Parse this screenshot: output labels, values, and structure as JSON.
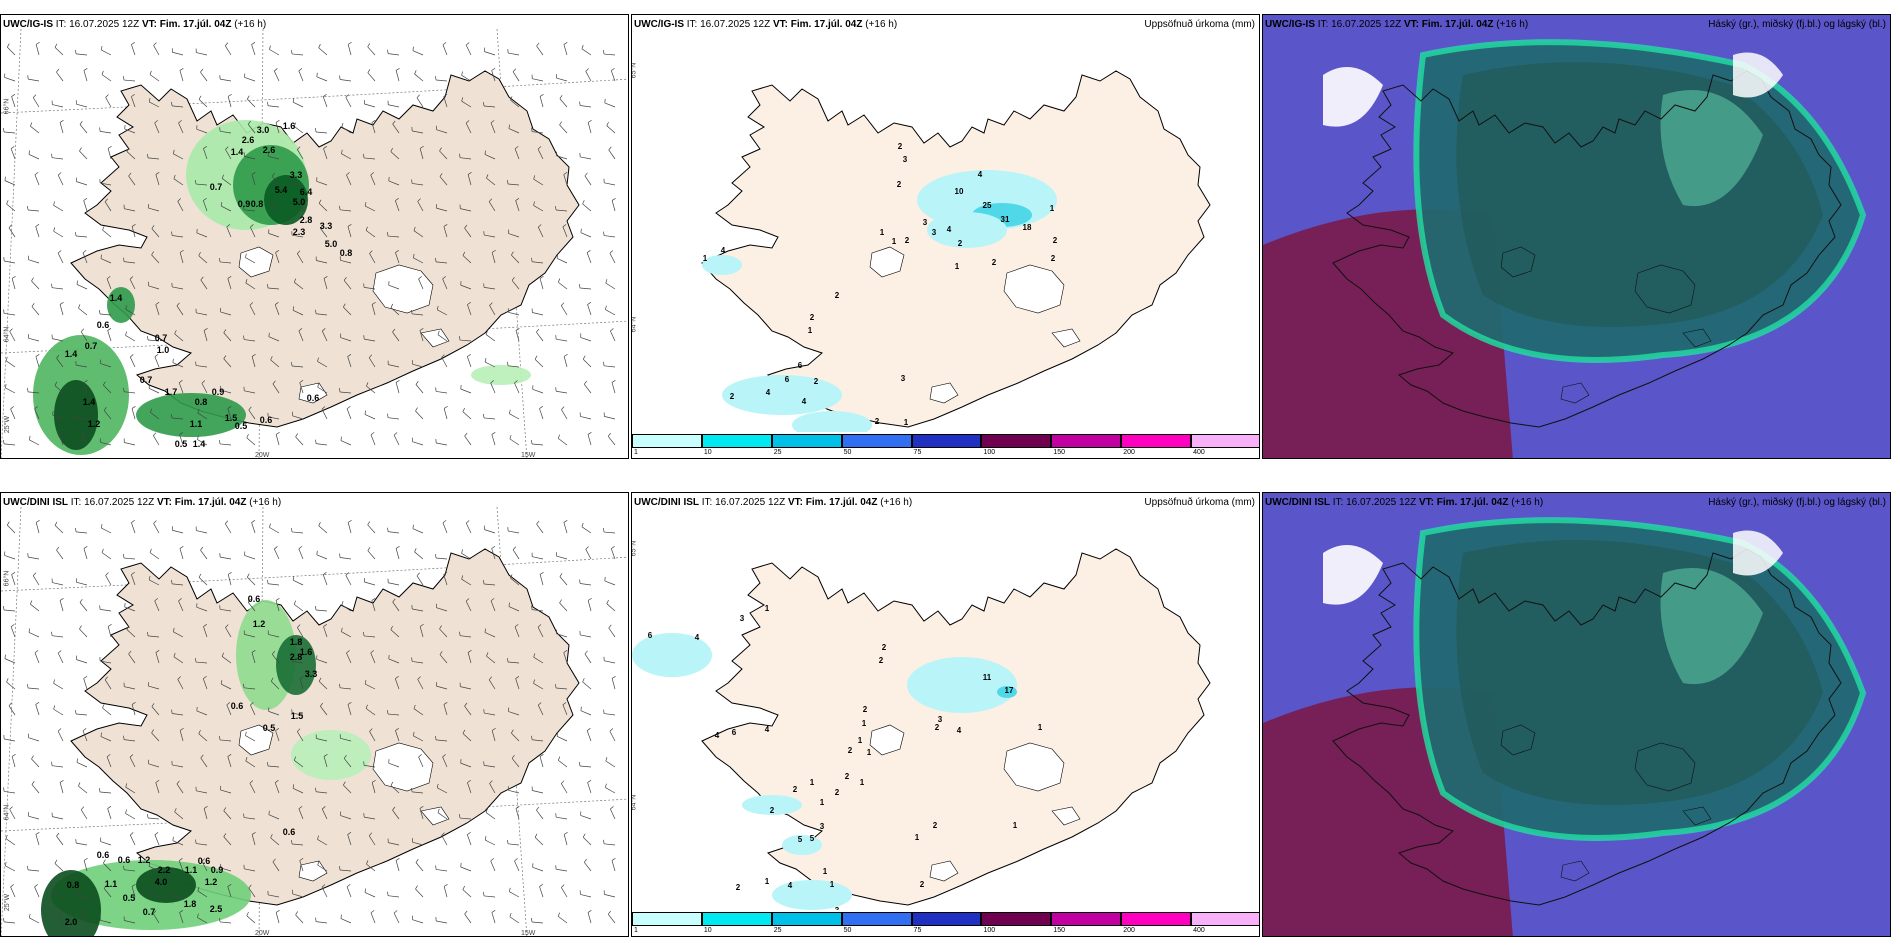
{
  "panels": [
    {
      "model": "UWC/IG-IS",
      "it": "IT: 16.07.2025 12Z",
      "vt": "VT: Fim. 17.júl. 04Z",
      "lead": "(+16 h)",
      "right": ""
    },
    {
      "model": "UWC/IG-IS",
      "it": "IT: 16.07.2025 12Z",
      "vt": "VT: Fim. 17.júl. 04Z",
      "lead": "(+16 h)",
      "right": "Uppsöfnuð úrkoma (mm)"
    },
    {
      "model": "UWC/IG-IS",
      "it": "IT: 16.07.2025 12Z",
      "vt": "VT: Fim. 17.júl. 04Z",
      "lead": "(+16 h)",
      "right": "Háský (gr.), miðský (fj.bl.) og lágský (bl.)"
    },
    {
      "model": "UWC/DINI ISL",
      "it": "IT: 16.07.2025 12Z",
      "vt": "VT: Fim. 17.júl. 04Z",
      "lead": "(+16 h)",
      "right": ""
    },
    {
      "model": "UWC/DINI ISL",
      "it": "IT: 16.07.2025 12Z",
      "vt": "VT: Fim. 17.júl. 04Z",
      "lead": "(+16 h)",
      "right": "Uppsöfnuð úrkoma (mm)"
    },
    {
      "model": "UWC/DINI ISL",
      "it": "IT: 16.07.2025 12Z",
      "vt": "VT: Fim. 17.júl. 04Z",
      "lead": "(+16 h)",
      "right": "Háský (gr.), miðský (fj.bl.) og lágský (bl.)"
    }
  ],
  "axes": {
    "lat66": "66°N",
    "lat64": "64°N",
    "lon25": "25°W",
    "lon20": "20W",
    "lon15": "15W"
  },
  "colorbar": {
    "ticks": [
      "1",
      "10",
      "25",
      "50",
      "75",
      "100",
      "150",
      "200",
      "400"
    ],
    "colors": [
      "#c8ffff",
      "#00e8f0",
      "#00c0e8",
      "#3070f0",
      "#2030c0",
      "#700050",
      "#c000a0",
      "#ff00c0",
      "#f8b0f8"
    ]
  },
  "labels": {
    "igis_wind": [
      [
        "3.0",
        262,
        118
      ],
      [
        "1.6",
        288,
        114
      ],
      [
        "2.6",
        247,
        128
      ],
      [
        "1.4",
        236,
        140
      ],
      [
        "2.6",
        268,
        138
      ],
      [
        "3.3",
        295,
        163
      ],
      [
        "5.4",
        280,
        178
      ],
      [
        "6.4",
        305,
        180
      ],
      [
        "5.0",
        298,
        190
      ],
      [
        "0.7",
        215,
        175
      ],
      [
        "0.9",
        243,
        192
      ],
      [
        "0.8",
        256,
        192
      ],
      [
        "2.8",
        305,
        208
      ],
      [
        "3.3",
        325,
        214
      ],
      [
        "2.3",
        298,
        220
      ],
      [
        "5.0",
        330,
        232
      ],
      [
        "0.8",
        345,
        241
      ],
      [
        "1.4",
        115,
        286
      ],
      [
        "0.6",
        102,
        313
      ],
      [
        "0.7",
        90,
        334
      ],
      [
        "0.7",
        160,
        326
      ],
      [
        "1.0",
        162,
        338
      ],
      [
        "1.4",
        70,
        342
      ],
      [
        "0.7",
        145,
        368
      ],
      [
        "1.7",
        170,
        380
      ],
      [
        "0.9",
        217,
        380
      ],
      [
        "0.8",
        200,
        390
      ],
      [
        "0.6",
        312,
        386
      ],
      [
        "1.4",
        88,
        390
      ],
      [
        "1.5",
        230,
        406
      ],
      [
        "0.6",
        265,
        408
      ],
      [
        "1.2",
        93,
        412
      ],
      [
        "1.1",
        195,
        412
      ],
      [
        "0.5",
        240,
        414
      ],
      [
        "0.5",
        180,
        432
      ],
      [
        "1.4",
        198,
        432
      ]
    ],
    "igis_precip": [
      [
        "2",
        268,
        134
      ],
      [
        "3",
        273,
        147
      ],
      [
        "2",
        267,
        172
      ],
      [
        "4",
        348,
        162
      ],
      [
        "10",
        327,
        179
      ],
      [
        "25",
        355,
        193
      ],
      [
        "31",
        373,
        207
      ],
      [
        "18",
        395,
        215
      ],
      [
        "1",
        420,
        196
      ],
      [
        "3",
        293,
        210
      ],
      [
        "3",
        302,
        220
      ],
      [
        "4",
        317,
        217
      ],
      [
        "2",
        328,
        231
      ],
      [
        "1",
        250,
        220
      ],
      [
        "1",
        262,
        229
      ],
      [
        "2",
        275,
        228
      ],
      [
        "2",
        362,
        250
      ],
      [
        "2",
        423,
        228
      ],
      [
        "2",
        421,
        246
      ],
      [
        "4",
        91,
        238
      ],
      [
        "1",
        73,
        246
      ],
      [
        "1",
        325,
        254
      ],
      [
        "2",
        205,
        283
      ],
      [
        "2",
        180,
        305
      ],
      [
        "1",
        178,
        318
      ],
      [
        "6",
        168,
        353
      ],
      [
        "2",
        184,
        369
      ],
      [
        "6",
        155,
        367
      ],
      [
        "4",
        136,
        380
      ],
      [
        "2",
        100,
        384
      ],
      [
        "4",
        172,
        389
      ],
      [
        "3",
        271,
        366
      ],
      [
        "2",
        245,
        409
      ],
      [
        "1",
        274,
        410
      ],
      [
        "2",
        262,
        425
      ]
    ],
    "dini_wind": [
      [
        "0.6",
        253,
        587
      ],
      [
        "1.2",
        258,
        612
      ],
      [
        "1.8",
        295,
        630
      ],
      [
        "1.6",
        305,
        640
      ],
      [
        "2.8",
        295,
        645
      ],
      [
        "3.3",
        310,
        662
      ],
      [
        "0.6",
        236,
        694
      ],
      [
        "1.5",
        296,
        704
      ],
      [
        "0.5",
        268,
        716
      ],
      [
        "0.6",
        288,
        820
      ],
      [
        "0.6",
        102,
        843
      ],
      [
        "0.6",
        123,
        848
      ],
      [
        "1.2",
        143,
        848
      ],
      [
        "0.6",
        203,
        849
      ],
      [
        "1.1",
        190,
        858
      ],
      [
        "2.2",
        163,
        858
      ],
      [
        "0.9",
        216,
        858
      ],
      [
        "0.8",
        72,
        873
      ],
      [
        "1.1",
        110,
        872
      ],
      [
        "4.0",
        160,
        870
      ],
      [
        "1.2",
        210,
        870
      ],
      [
        "0.5",
        128,
        886
      ],
      [
        "0.7",
        148,
        900
      ],
      [
        "2.5",
        215,
        897
      ],
      [
        "1.8",
        189,
        892
      ],
      [
        "2.0",
        70,
        910
      ]
    ],
    "dini_precip": [
      [
        "6",
        18,
        623
      ],
      [
        "4",
        65,
        625
      ],
      [
        "3",
        110,
        606
      ],
      [
        "1",
        135,
        596
      ],
      [
        "2",
        252,
        635
      ],
      [
        "2",
        249,
        648
      ],
      [
        "11",
        355,
        665
      ],
      [
        "17",
        377,
        678
      ],
      [
        "2",
        233,
        697
      ],
      [
        "1",
        232,
        711
      ],
      [
        "3",
        308,
        707
      ],
      [
        "2",
        305,
        715
      ],
      [
        "4",
        327,
        718
      ],
      [
        "1",
        228,
        728
      ],
      [
        "2",
        218,
        738
      ],
      [
        "1",
        237,
        740
      ],
      [
        "4",
        135,
        717
      ],
      [
        "6",
        102,
        720
      ],
      [
        "4",
        85,
        723
      ],
      [
        "1",
        408,
        715
      ],
      [
        "2",
        215,
        764
      ],
      [
        "1",
        230,
        770
      ],
      [
        "1",
        180,
        770
      ],
      [
        "2",
        163,
        777
      ],
      [
        "1",
        190,
        790
      ],
      [
        "2",
        205,
        780
      ],
      [
        "2",
        140,
        798
      ],
      [
        "5",
        168,
        827
      ],
      [
        "5",
        180,
        826
      ],
      [
        "3",
        190,
        814
      ],
      [
        "1",
        285,
        825
      ],
      [
        "2",
        303,
        813
      ],
      [
        "1",
        383,
        813
      ],
      [
        "2",
        106,
        875
      ],
      [
        "1",
        135,
        869
      ],
      [
        "4",
        158,
        873
      ],
      [
        "1",
        193,
        859
      ],
      [
        "1",
        200,
        872
      ],
      [
        "3",
        205,
        898
      ],
      [
        "3",
        219,
        902
      ],
      [
        "2",
        290,
        872
      ]
    ]
  }
}
